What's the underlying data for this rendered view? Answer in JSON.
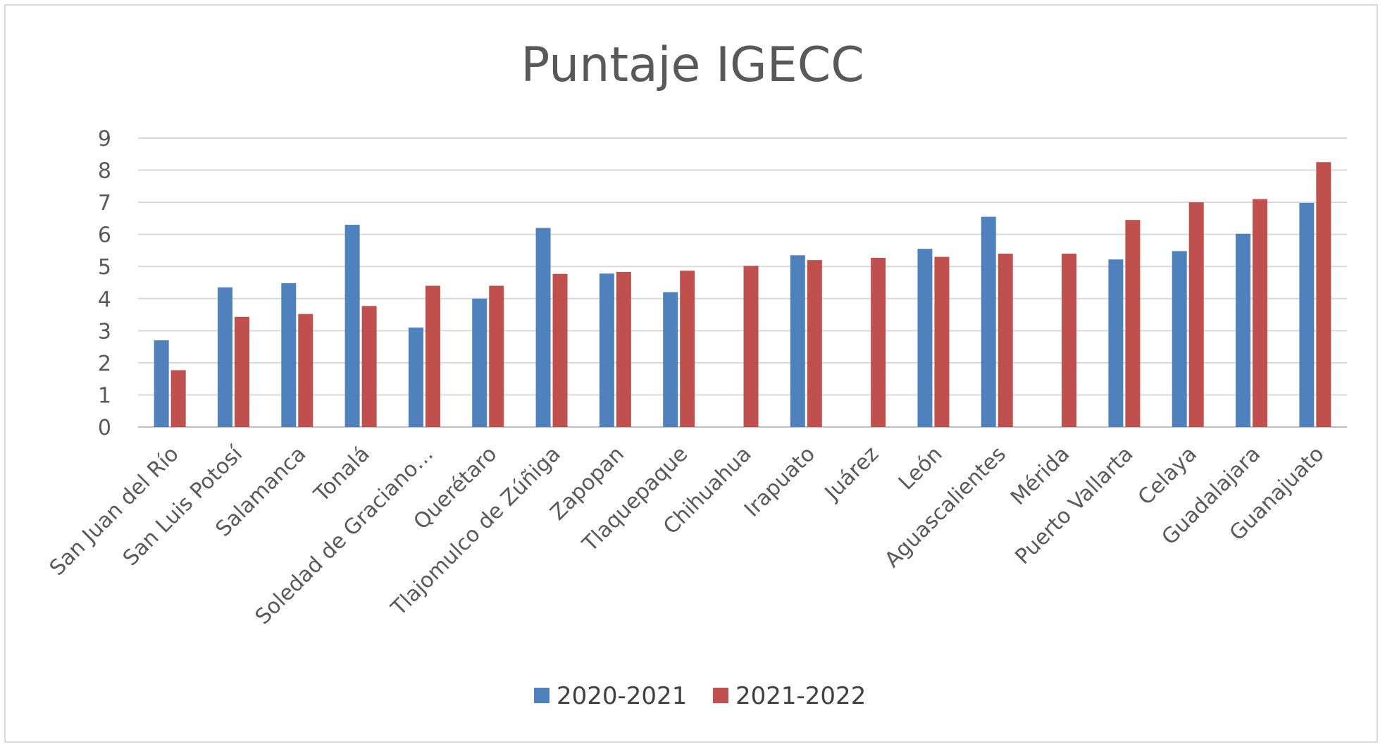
{
  "chart_data": {
    "type": "bar",
    "title": "Puntaje IGECC",
    "xlabel": "",
    "ylabel": "",
    "ylim": [
      0,
      9
    ],
    "yticks": [
      0,
      1,
      2,
      3,
      4,
      5,
      6,
      7,
      8,
      9
    ],
    "grid": true,
    "legend_position": "bottom",
    "categories": [
      "San Juan del Río",
      "San Luis Potosí",
      "Salamanca",
      "Tonalá",
      "Soledad de Graciano…",
      "Querétaro",
      "Tlajomulco de Zúñiga",
      "Zapopan",
      "Tlaquepaque",
      "Chihuahua",
      "Irapuato",
      "Juárez",
      "León",
      "Aguascalientes",
      "Mérida",
      "Puerto Vallarta",
      "Celaya",
      "Guadalajara",
      "Guanajuato"
    ],
    "series": [
      {
        "name": "2020-2021",
        "color": "#4f81bd",
        "values": [
          2.7,
          4.35,
          4.48,
          6.3,
          3.1,
          4.0,
          6.2,
          4.78,
          4.2,
          null,
          5.35,
          null,
          5.55,
          6.55,
          null,
          5.22,
          5.48,
          6.02,
          6.98
        ]
      },
      {
        "name": "2021-2022",
        "color": "#c0504d",
        "values": [
          1.77,
          3.43,
          3.52,
          3.77,
          4.4,
          4.4,
          4.77,
          4.83,
          4.87,
          5.02,
          5.2,
          5.27,
          5.3,
          5.4,
          5.4,
          6.45,
          7.0,
          7.1,
          8.25
        ]
      }
    ]
  }
}
